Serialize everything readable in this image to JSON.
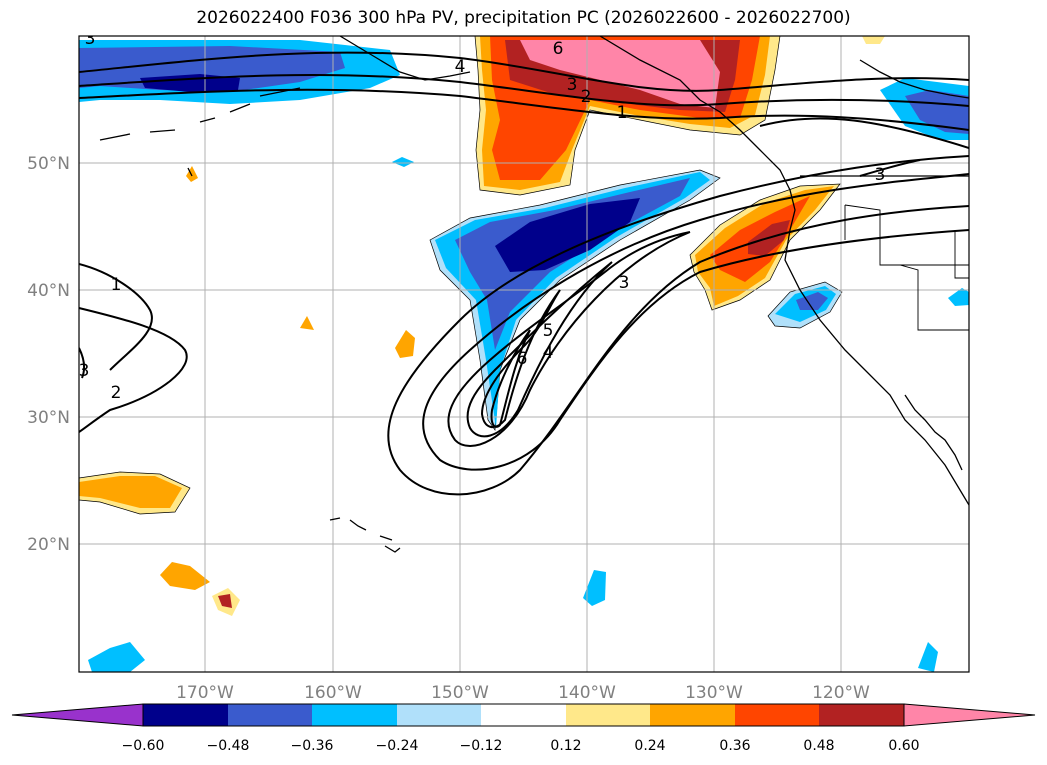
{
  "title": "2026022400 F036 300 hPa PV, precipitation PC (2026022600 - 2026022700)",
  "colors": {
    "c_neg060": "#9932cc",
    "c_neg048": "#00008b",
    "c_neg036": "#3a5bcd",
    "c_neg024": "#00bfff",
    "c_neg012": "#b0e0fa",
    "c_zero": "#ffffff",
    "c_pos012": "#ffe88a",
    "c_pos024": "#ffa500",
    "c_pos036": "#ff4500",
    "c_pos048": "#b22222",
    "c_pos060": "#ff85a8",
    "grid": "#b0b0b0",
    "contour": "#000000"
  },
  "chart_data": {
    "type": "map",
    "variable_fill": "precipitation PC",
    "variable_contour": "300 hPa PV",
    "latitude_labels": [
      "20°N",
      "30°N",
      "40°N",
      "50°N"
    ],
    "longitude_labels": [
      "170°W",
      "160°W",
      "150°W",
      "140°W",
      "130°W",
      "120°W"
    ],
    "colorbar": {
      "ticks": [
        "−0.60",
        "−0.48",
        "−0.36",
        "−0.24",
        "−0.12",
        "0.12",
        "0.24",
        "0.36",
        "0.48",
        "0.60"
      ],
      "boundaries": [
        -0.6,
        -0.48,
        -0.36,
        -0.24,
        -0.12,
        0.12,
        0.24,
        0.36,
        0.48,
        0.6
      ],
      "extend": "both"
    },
    "contour_labels": [
      "1",
      "2",
      "3",
      "4",
      "5",
      "6",
      "3",
      "4",
      "6",
      "3",
      "2",
      "1",
      "3",
      "3"
    ]
  }
}
